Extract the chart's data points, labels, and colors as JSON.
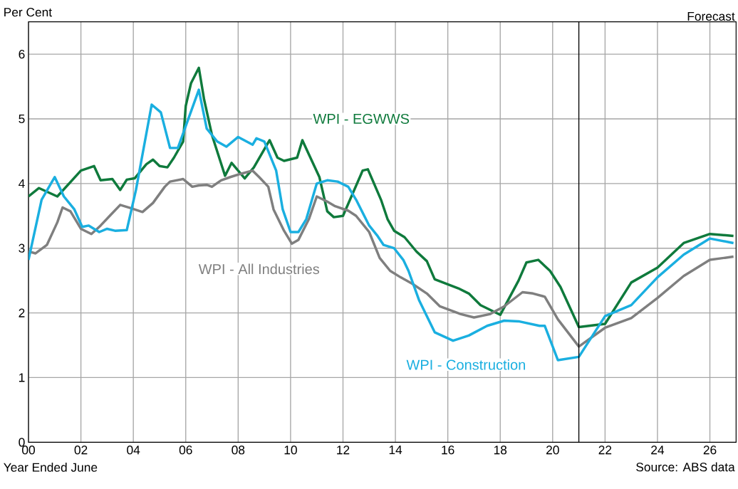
{
  "chart_data": {
    "type": "line",
    "xlabel": "Year Ended June",
    "ylabel": "Per Cent",
    "xlim": [
      0,
      27
    ],
    "ylim": [
      0,
      6.5
    ],
    "xticks": [
      {
        "value": 0,
        "label": "00"
      },
      {
        "value": 2,
        "label": "02"
      },
      {
        "value": 4,
        "label": "04"
      },
      {
        "value": 6,
        "label": "06"
      },
      {
        "value": 8,
        "label": "08"
      },
      {
        "value": 10,
        "label": "10"
      },
      {
        "value": 12,
        "label": "12"
      },
      {
        "value": 14,
        "label": "14"
      },
      {
        "value": 16,
        "label": "16"
      },
      {
        "value": 18,
        "label": "18"
      },
      {
        "value": 20,
        "label": "20"
      },
      {
        "value": 22,
        "label": "22"
      },
      {
        "value": 24,
        "label": "24"
      },
      {
        "value": 26,
        "label": "26"
      }
    ],
    "yticks": [
      0,
      1,
      2,
      3,
      4,
      5,
      6
    ],
    "grid": true,
    "legend": false,
    "marker": "none",
    "line_style": "solid",
    "ref_lines": [
      {
        "axis": "x",
        "value": 21,
        "label": "Forecast",
        "color": "#000000"
      }
    ],
    "annotations": [
      "Source: ABS data"
    ],
    "series": [
      {
        "name": "WPI - EGWWS",
        "color": "#0f7a3c",
        "x": [
          0,
          0.4,
          1.1,
          2,
          2.5,
          2.75,
          3.2,
          3.5,
          3.75,
          4.05,
          4.5,
          4.75,
          5,
          5.3,
          5.55,
          5.9,
          6,
          6.2,
          6.5,
          6.7,
          7,
          7.5,
          7.75,
          8.25,
          8.6,
          9.2,
          9.5,
          9.75,
          10.25,
          10.45,
          10.7,
          11.1,
          11.4,
          11.65,
          12,
          12.75,
          12.95,
          13.45,
          13.7,
          13.95,
          14.35,
          14.8,
          15.2,
          15.5,
          16.4,
          16.8,
          17.25,
          18,
          18.7,
          19,
          19.45,
          19.9,
          20.3,
          21,
          22,
          23,
          24,
          25,
          26,
          26.9
        ],
        "values": [
          3.8,
          3.93,
          3.8,
          4.2,
          4.27,
          4.05,
          4.07,
          3.9,
          4.06,
          4.08,
          4.3,
          4.37,
          4.27,
          4.25,
          4.4,
          4.65,
          5.2,
          5.55,
          5.79,
          5.3,
          4.75,
          4.12,
          4.32,
          4.08,
          4.25,
          4.67,
          4.4,
          4.35,
          4.4,
          4.67,
          4.45,
          4.1,
          3.57,
          3.48,
          3.5,
          4.2,
          4.22,
          3.75,
          3.45,
          3.27,
          3.17,
          2.95,
          2.8,
          2.52,
          2.38,
          2.3,
          2.12,
          1.97,
          2.5,
          2.78,
          2.82,
          2.65,
          2.4,
          1.78,
          1.83,
          2.47,
          2.7,
          3.08,
          3.22,
          3.19
        ]
      },
      {
        "name": "WPI - All Industries",
        "color": "#7f7f7f",
        "x": [
          0,
          0.27,
          0.7,
          1.1,
          1.3,
          1.6,
          2,
          2.4,
          2.75,
          3.1,
          3.5,
          3.9,
          4.35,
          4.75,
          5.2,
          5.4,
          5.9,
          6.25,
          6.5,
          6.8,
          7,
          7.35,
          7.7,
          8.1,
          8.55,
          8.8,
          9.15,
          9.35,
          9.75,
          10.05,
          10.3,
          10.7,
          11,
          11.4,
          11.7,
          12.2,
          12.5,
          13,
          13.4,
          13.8,
          14.2,
          14.65,
          15.2,
          15.7,
          16.5,
          17,
          17.6,
          18.15,
          18.85,
          19.25,
          19.7,
          20.2,
          21,
          22,
          23,
          24,
          25,
          26,
          26.9
        ],
        "values": [
          2.95,
          2.92,
          3.05,
          3.4,
          3.63,
          3.57,
          3.3,
          3.22,
          3.35,
          3.5,
          3.67,
          3.62,
          3.56,
          3.7,
          3.95,
          4.03,
          4.07,
          3.95,
          3.97,
          3.98,
          3.95,
          4.05,
          4.1,
          4.15,
          4.2,
          4.1,
          3.95,
          3.6,
          3.27,
          3.07,
          3.13,
          3.45,
          3.8,
          3.72,
          3.65,
          3.58,
          3.5,
          3.25,
          2.85,
          2.65,
          2.55,
          2.45,
          2.3,
          2.1,
          1.98,
          1.93,
          1.98,
          2.1,
          2.32,
          2.3,
          2.25,
          1.9,
          1.48,
          1.77,
          1.92,
          2.23,
          2.57,
          2.82,
          2.87
        ]
      },
      {
        "name": "WPI - Construction",
        "color": "#1aafe0",
        "x": [
          0,
          0.5,
          1,
          1.35,
          1.75,
          2.05,
          2.3,
          2.7,
          3,
          3.3,
          3.75,
          4.1,
          4.7,
          5.05,
          5.4,
          5.7,
          6.1,
          6.5,
          6.8,
          7.2,
          7.55,
          8,
          8.55,
          8.7,
          9,
          9.45,
          9.7,
          10,
          10.3,
          10.6,
          11,
          11.4,
          11.8,
          12.2,
          12.5,
          13,
          13.3,
          13.55,
          13.95,
          14.3,
          14.5,
          14.9,
          15.5,
          16.2,
          16.8,
          17.5,
          18.15,
          18.7,
          19.5,
          19.7,
          20.2,
          21,
          22,
          23,
          24,
          25,
          26,
          26.9
        ],
        "values": [
          2.82,
          3.75,
          4.1,
          3.8,
          3.6,
          3.33,
          3.35,
          3.25,
          3.3,
          3.27,
          3.28,
          3.9,
          5.22,
          5.1,
          4.55,
          4.55,
          5.0,
          5.45,
          4.85,
          4.65,
          4.57,
          4.72,
          4.6,
          4.7,
          4.65,
          4.2,
          3.6,
          3.25,
          3.25,
          3.45,
          4.0,
          4.05,
          4.03,
          3.95,
          3.75,
          3.35,
          3.2,
          3.05,
          3.0,
          2.82,
          2.65,
          2.2,
          1.7,
          1.57,
          1.65,
          1.8,
          1.88,
          1.87,
          1.8,
          1.8,
          1.27,
          1.32,
          1.95,
          2.12,
          2.55,
          2.9,
          3.15,
          3.08
        ]
      }
    ]
  }
}
